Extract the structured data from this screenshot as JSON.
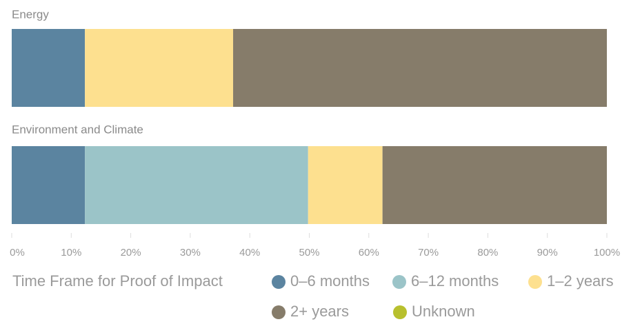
{
  "chart_data": {
    "type": "stacked-bar-horizontal",
    "categories": [
      "Energy",
      "Environment and Climate"
    ],
    "series": [
      {
        "name": "0–6 months",
        "color": "#5b84a0",
        "values": [
          12.3,
          12.3
        ]
      },
      {
        "name": "6–12 months",
        "color": "#9bc4c8",
        "values": [
          0,
          37.5
        ]
      },
      {
        "name": "1–2 years",
        "color": "#fde08f",
        "values": [
          24.9,
          12.5
        ]
      },
      {
        "name": "2+ years",
        "color": "#867c6a",
        "values": [
          62.8,
          37.7
        ]
      },
      {
        "name": "Unknown",
        "color": "#b8c02e",
        "values": [
          0,
          0
        ]
      }
    ],
    "xlim": [
      0,
      100
    ],
    "xticks": [
      {
        "value": 0,
        "label": "0%"
      },
      {
        "value": 10,
        "label": "10%"
      },
      {
        "value": 20,
        "label": "20%"
      },
      {
        "value": 30,
        "label": "30%"
      },
      {
        "value": 40,
        "label": "40%"
      },
      {
        "value": 50,
        "label": "50%"
      },
      {
        "value": 60,
        "label": "60%"
      },
      {
        "value": 70,
        "label": "70%"
      },
      {
        "value": 80,
        "label": "80%"
      },
      {
        "value": 90,
        "label": "90%"
      },
      {
        "value": 100,
        "label": "100%"
      }
    ],
    "legend_title": "Time Frame for Proof of Impact",
    "legend": "bottom"
  }
}
